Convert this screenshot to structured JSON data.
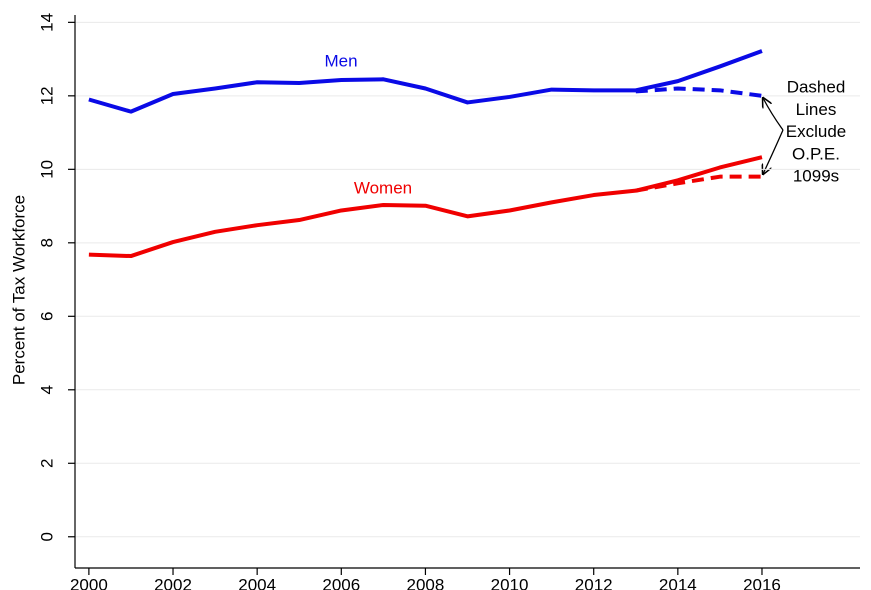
{
  "chart_data": {
    "type": "line",
    "y_label": "Percent of Tax Workforce",
    "x": [
      2000,
      2001,
      2002,
      2003,
      2004,
      2005,
      2006,
      2007,
      2008,
      2009,
      2010,
      2011,
      2012,
      2013,
      2014,
      2015,
      2016
    ],
    "series": [
      {
        "name": "Men",
        "color": "#0a0ae6",
        "dashed": false,
        "values": [
          11.9,
          11.57,
          12.05,
          12.2,
          12.37,
          12.35,
          12.43,
          12.45,
          12.2,
          11.82,
          11.97,
          12.17,
          12.15,
          12.15,
          12.4,
          12.8,
          13.22
        ]
      },
      {
        "color": "#0a0ae6",
        "dashed": true,
        "values": [
          null,
          null,
          null,
          null,
          null,
          null,
          null,
          null,
          null,
          null,
          null,
          null,
          null,
          12.12,
          12.2,
          12.15,
          12.0
        ]
      },
      {
        "name": "Women",
        "color": "#f00000",
        "dashed": false,
        "values": [
          7.68,
          7.64,
          8.02,
          8.3,
          8.48,
          8.62,
          8.88,
          9.03,
          9.01,
          8.72,
          8.88,
          9.1,
          9.3,
          9.42,
          9.7,
          10.05,
          10.33
        ]
      },
      {
        "color": "#f00000",
        "dashed": true,
        "values": [
          null,
          null,
          null,
          null,
          null,
          null,
          null,
          null,
          null,
          null,
          null,
          null,
          null,
          9.42,
          9.62,
          9.8,
          9.8
        ]
      }
    ],
    "annotation": [
      "Dashed",
      "Lines",
      "Exclude",
      "O.P.E.",
      "1099s"
    ],
    "xlim": [
      1999.67,
      2018.33
    ],
    "xticks": [
      2000,
      2002,
      2004,
      2006,
      2008,
      2010,
      2012,
      2014,
      2016
    ],
    "ylim": [
      -0.85,
      14.2
    ],
    "yticks": [
      0,
      2,
      4,
      6,
      8,
      10,
      12,
      14
    ],
    "grid": true
  }
}
